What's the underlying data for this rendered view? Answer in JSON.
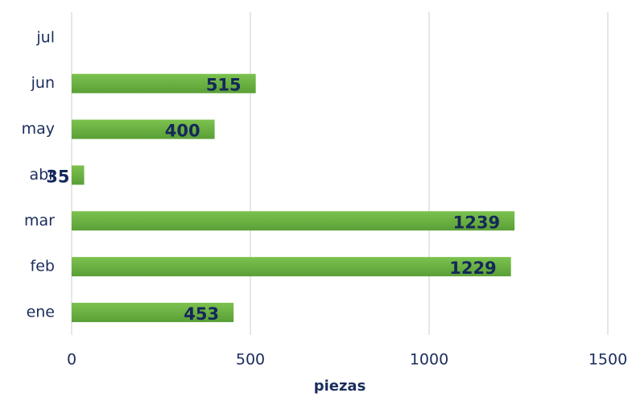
{
  "chart_data": {
    "type": "barh",
    "x_label": "piezas",
    "categories": [
      "ene",
      "feb",
      "mar",
      "abr",
      "may",
      "jun",
      "jul"
    ],
    "values": [
      453,
      1229,
      1239,
      35,
      400,
      515,
      null
    ],
    "color": "#6db344",
    "xlim": [
      0,
      1500
    ],
    "xticks": [
      0,
      500,
      1000,
      1500
    ],
    "grid": true
  }
}
